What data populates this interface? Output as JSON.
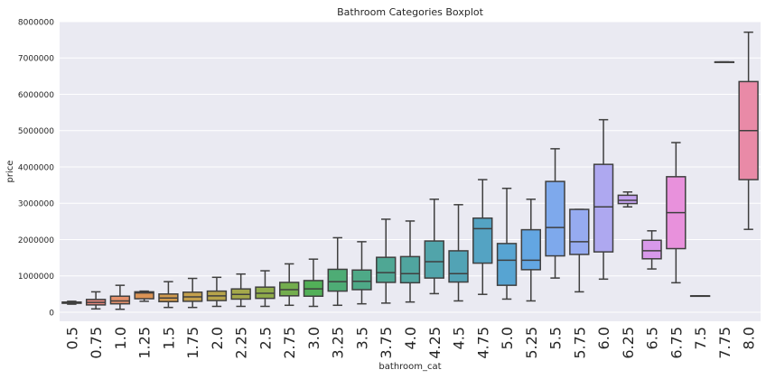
{
  "chart_data": {
    "type": "boxplot",
    "title": "Bathroom Categories Boxplot",
    "xlabel": "bathroom_cat",
    "ylabel": "price",
    "ylim": [
      -250000,
      8000000
    ],
    "yticks": [
      0,
      1000000,
      2000000,
      3000000,
      4000000,
      5000000,
      6000000,
      7000000,
      8000000
    ],
    "ytick_labels": [
      "0",
      "1000000",
      "2000000",
      "3000000",
      "4000000",
      "5000000",
      "6000000",
      "7000000",
      "8000000"
    ],
    "grid": true,
    "categories": [
      "0.5",
      "0.75",
      "1.0",
      "1.25",
      "1.5",
      "1.75",
      "2.0",
      "2.25",
      "2.5",
      "2.75",
      "3.0",
      "3.25",
      "3.5",
      "3.75",
      "4.0",
      "4.25",
      "4.5",
      "4.75",
      "5.0",
      "5.25",
      "5.5",
      "5.75",
      "6.0",
      "6.25",
      "6.5",
      "6.75",
      "7.5",
      "7.75",
      "8.0"
    ],
    "boxes": [
      {
        "category": "0.5",
        "whislo": 220000,
        "q1": 245000,
        "med": 262000,
        "q3": 278000,
        "whishi": 300000,
        "color": "#e9858b"
      },
      {
        "category": "0.75",
        "whislo": 90000,
        "q1": 200000,
        "med": 270000,
        "q3": 350000,
        "whishi": 560000,
        "color": "#e6877d"
      },
      {
        "category": "1.0",
        "whislo": 80000,
        "q1": 230000,
        "med": 310000,
        "q3": 440000,
        "whishi": 740000,
        "color": "#e4906b"
      },
      {
        "category": "1.25",
        "whislo": 300000,
        "q1": 370000,
        "med": 530000,
        "q3": 560000,
        "whishi": 580000,
        "color": "#db9355"
      },
      {
        "category": "1.5",
        "whislo": 130000,
        "q1": 290000,
        "med": 390000,
        "q3": 500000,
        "whishi": 840000,
        "color": "#d19a4e"
      },
      {
        "category": "1.75",
        "whislo": 130000,
        "q1": 300000,
        "med": 420000,
        "q3": 550000,
        "whishi": 930000,
        "color": "#c4a04d"
      },
      {
        "category": "2.0",
        "whislo": 160000,
        "q1": 320000,
        "med": 450000,
        "q3": 580000,
        "whishi": 960000,
        "color": "#b6a44b"
      },
      {
        "category": "2.25",
        "whislo": 160000,
        "q1": 360000,
        "med": 490000,
        "q3": 640000,
        "whishi": 1050000,
        "color": "#a4a84b"
      },
      {
        "category": "2.5",
        "whislo": 160000,
        "q1": 380000,
        "med": 520000,
        "q3": 690000,
        "whishi": 1140000,
        "color": "#8fab4a"
      },
      {
        "category": "2.75",
        "whislo": 190000,
        "q1": 450000,
        "med": 620000,
        "q3": 820000,
        "whishi": 1330000,
        "color": "#73ad4e"
      },
      {
        "category": "3.0",
        "whislo": 160000,
        "q1": 440000,
        "med": 640000,
        "q3": 870000,
        "whishi": 1460000,
        "color": "#52b058"
      },
      {
        "category": "3.25",
        "whislo": 190000,
        "q1": 580000,
        "med": 840000,
        "q3": 1180000,
        "whishi": 2050000,
        "color": "#4eac75"
      },
      {
        "category": "3.5",
        "whislo": 230000,
        "q1": 620000,
        "med": 850000,
        "q3": 1160000,
        "whishi": 1940000,
        "color": "#4ea987"
      },
      {
        "category": "3.75",
        "whislo": 250000,
        "q1": 820000,
        "med": 1090000,
        "q3": 1510000,
        "whishi": 2560000,
        "color": "#4fa794"
      },
      {
        "category": "4.0",
        "whislo": 280000,
        "q1": 810000,
        "med": 1060000,
        "q3": 1530000,
        "whishi": 2510000,
        "color": "#50a59f"
      },
      {
        "category": "4.25",
        "whislo": 510000,
        "q1": 940000,
        "med": 1390000,
        "q3": 1960000,
        "whishi": 3110000,
        "color": "#51a4aa"
      },
      {
        "category": "4.5",
        "whislo": 310000,
        "q1": 830000,
        "med": 1060000,
        "q3": 1690000,
        "whishi": 2960000,
        "color": "#52a3b5"
      },
      {
        "category": "4.75",
        "whislo": 490000,
        "q1": 1350000,
        "med": 2300000,
        "q3": 2590000,
        "whishi": 3650000,
        "color": "#54a3c3"
      },
      {
        "category": "5.0",
        "whislo": 360000,
        "q1": 740000,
        "med": 1430000,
        "q3": 1890000,
        "whishi": 3410000,
        "color": "#57a4d2"
      },
      {
        "category": "5.25",
        "whislo": 310000,
        "q1": 1170000,
        "med": 1430000,
        "q3": 2270000,
        "whishi": 3110000,
        "color": "#63a6e2"
      },
      {
        "category": "5.5",
        "whislo": 940000,
        "q1": 1550000,
        "med": 2330000,
        "q3": 3600000,
        "whishi": 4500000,
        "color": "#7ea9ec"
      },
      {
        "category": "5.75",
        "whislo": 560000,
        "q1": 1590000,
        "med": 1940000,
        "q3": 2830000,
        "whishi": 2830000,
        "color": "#96abf0"
      },
      {
        "category": "6.0",
        "whislo": 910000,
        "q1": 1660000,
        "med": 2900000,
        "q3": 4070000,
        "whishi": 5300000,
        "color": "#aea8f0"
      },
      {
        "category": "6.25",
        "whislo": 2900000,
        "q1": 2990000,
        "med": 3080000,
        "q3": 3220000,
        "whishi": 3310000,
        "color": "#c4a2ef"
      },
      {
        "category": "6.5",
        "whislo": 1190000,
        "q1": 1470000,
        "med": 1690000,
        "q3": 1980000,
        "whishi": 2240000,
        "color": "#d899ea"
      },
      {
        "category": "6.75",
        "whislo": 810000,
        "q1": 1750000,
        "med": 2740000,
        "q3": 3730000,
        "whishi": 4670000,
        "color": "#e891dc"
      },
      {
        "category": "7.5",
        "whislo": 450000,
        "q1": 450000,
        "med": 450000,
        "q3": 450000,
        "whishi": 450000,
        "color": "#eb8ccc"
      },
      {
        "category": "7.75",
        "whislo": 6890000,
        "q1": 6890000,
        "med": 6890000,
        "q3": 6890000,
        "whishi": 6890000,
        "color": "#ec89bc"
      },
      {
        "category": "8.0",
        "whislo": 2280000,
        "q1": 3650000,
        "med": 5000000,
        "q3": 6350000,
        "whishi": 7710000,
        "color": "#e98aa7"
      }
    ]
  }
}
